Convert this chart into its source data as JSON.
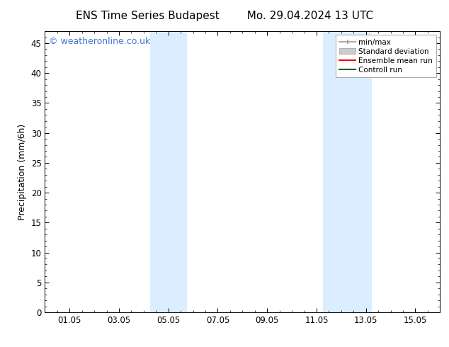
{
  "title_left": "ENS Time Series Budapest",
  "title_right": "Mo. 29.04.2024 13 UTC",
  "ylabel": "Precipitation (mm/6h)",
  "ylim": [
    0,
    47
  ],
  "yticks": [
    0,
    5,
    10,
    15,
    20,
    25,
    30,
    35,
    40,
    45
  ],
  "xlabel": "",
  "background_color": "#ffffff",
  "plot_bg_color": "#ffffff",
  "watermark": "© weatheronline.co.uk",
  "watermark_color": "#4477cc",
  "shaded_bands": [
    {
      "x_start": 4.25,
      "x_end": 5.75
    },
    {
      "x_start": 11.25,
      "x_end": 13.25
    }
  ],
  "shaded_color": "#daeeff",
  "xtick_labels": [
    "01.05",
    "03.05",
    "05.05",
    "07.05",
    "09.05",
    "11.05",
    "13.05",
    "15.05"
  ],
  "xtick_positions": [
    1,
    3,
    5,
    7,
    9,
    11,
    13,
    15
  ],
  "xlim": [
    0,
    16
  ],
  "legend_items": [
    {
      "label": "min/max",
      "color": "#999999",
      "style": "line_with_caps"
    },
    {
      "label": "Standard deviation",
      "color": "#cccccc",
      "style": "filled_rect"
    },
    {
      "label": "Ensemble mean run",
      "color": "#ff0000",
      "style": "line"
    },
    {
      "label": "Controll run",
      "color": "#006600",
      "style": "line"
    }
  ],
  "font_family": "DejaVu Sans",
  "title_fontsize": 11,
  "tick_fontsize": 8.5,
  "ylabel_fontsize": 9,
  "watermark_fontsize": 9
}
